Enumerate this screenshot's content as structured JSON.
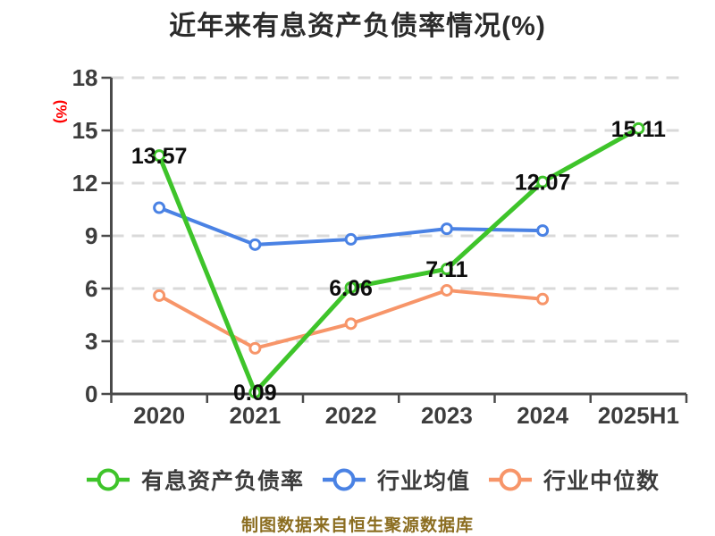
{
  "chart_data": {
    "type": "line",
    "title": "近年来有息资产负债率情况(%)",
    "ylabel": "(%)",
    "source_note": "制图数据来自恒生聚源数据库",
    "categories": [
      "2020",
      "2021",
      "2022",
      "2023",
      "2024",
      "2025H1"
    ],
    "yticks": [
      0,
      3,
      6,
      9,
      12,
      15,
      18
    ],
    "ylim": [
      0,
      18
    ],
    "grid": "horizontal-dashed",
    "legend_position": "bottom",
    "series": [
      {
        "name": "有息资产负债率",
        "color": "#3ec42a",
        "values": [
          13.57,
          0.09,
          6.06,
          7.11,
          12.07,
          15.11
        ],
        "point_labels": [
          "13.57",
          "0.09",
          "6.06",
          "7.11",
          "12.07",
          "15.11"
        ]
      },
      {
        "name": "行业均值",
        "color": "#4a82e4",
        "values": [
          10.6,
          8.5,
          8.8,
          9.4,
          9.3,
          null
        ]
      },
      {
        "name": "行业中位数",
        "color": "#f79569",
        "values": [
          5.6,
          2.6,
          4.0,
          5.9,
          5.4,
          null
        ]
      }
    ],
    "style": {
      "grid_color": "#d9d9d9",
      "axis_color": "#4a4a4a",
      "tick_label_color": "#3d3d3d",
      "title_color": "#2b2b2b",
      "data_label_color": "#0d0d0d",
      "ylabel_color": "#ff0000",
      "legend_text_color": "#3c3c3c",
      "source_color": "#8b6d20",
      "marker_fill": "#ffffff"
    }
  }
}
